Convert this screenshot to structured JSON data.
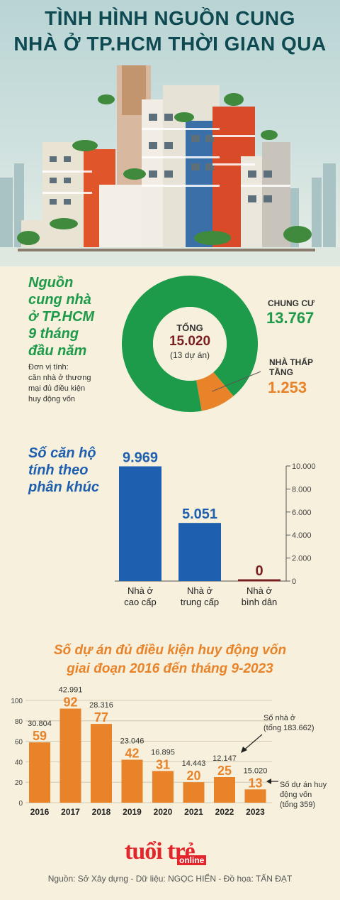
{
  "title": {
    "line1": "TÌNH HÌNH NGUỒN CUNG",
    "line2": "NHÀ Ở TP.HCM THỜI GIAN QUA"
  },
  "colors": {
    "green": "#1d9a4a",
    "orange": "#e8832a",
    "blue": "#1f5fb0",
    "maroon": "#7a1f1f",
    "title": "#0f4a52",
    "brand_red": "#e3262b"
  },
  "supply": {
    "heading": [
      "Nguồn",
      "cung nhà",
      "ở TP.HCM",
      "9 tháng",
      "đầu năm"
    ],
    "unit": [
      "Đơn vị tính:",
      "căn nhà ở thương",
      "mại đủ điều kiện",
      "huy động vốn"
    ],
    "center": {
      "label": "TỔNG",
      "total": "15.020",
      "projects": "(13 dự án)"
    },
    "segments": [
      {
        "label": "CHUNG CƯ",
        "value_text": "13.767",
        "value": 13767,
        "color": "#1d9a4a"
      },
      {
        "label": [
          "NHÀ THẤP",
          "TẦNG"
        ],
        "value_text": "1.253",
        "value": 1253,
        "color": "#e8832a"
      }
    ]
  },
  "segment_heading": [
    "Số căn hộ",
    "tính theo",
    "phân khúc"
  ],
  "projects_title": [
    "Số dự án đủ điều kiện huy động vốn",
    "giai đoạn 2016 đến tháng 9-2023"
  ],
  "notes": {
    "houses": [
      "Số nhà ở",
      "(tổng 183.662)"
    ],
    "projects": [
      "Số dự án huy",
      "động vốn",
      "(tổng 359)"
    ]
  },
  "chart_data": [
    {
      "type": "pie",
      "categories": [
        "CHUNG CƯ",
        "NHÀ THẤP TẦNG"
      ],
      "values": [
        13767,
        1253
      ]
    },
    {
      "type": "bar",
      "categories": [
        "Nhà ở cao cấp",
        "Nhà ở trung cấp",
        "Nhà ở bình dân"
      ],
      "category_lines": [
        [
          "Nhà ở",
          "cao cấp"
        ],
        [
          "Nhà ở",
          "trung cấp"
        ],
        [
          "Nhà ở",
          "bình dân"
        ]
      ],
      "values": [
        9969,
        5051,
        0
      ],
      "value_labels": [
        "9.969",
        "5.051",
        "0"
      ],
      "ylim": [
        0,
        10000
      ],
      "yticks": [
        "0",
        "2.000",
        "4.000",
        "6.000",
        "8.000",
        "10.000"
      ],
      "y_axis_side": "right",
      "colors": [
        "#1f5fb0",
        "#1f5fb0",
        "#7a1f1f"
      ]
    },
    {
      "type": "bar",
      "categories": [
        "2016",
        "2017",
        "2018",
        "2019",
        "2020",
        "2021",
        "2022",
        "2023"
      ],
      "values": [
        59,
        92,
        77,
        42,
        31,
        20,
        25,
        13
      ],
      "secondary_labels": [
        "30.804",
        "42.991",
        "28.316",
        "23.046",
        "16.895",
        "14.443",
        "12.147",
        "15.020"
      ],
      "ylim": [
        0,
        100
      ],
      "yticks": [
        "0",
        "20",
        "40",
        "60",
        "80",
        "100"
      ],
      "grid": true,
      "color": "#e8832a"
    }
  ],
  "footer": {
    "logo_main": "tuổi trẻ",
    "logo_sub": "online",
    "source": "Nguồn: Sở Xây dựng - Dữ liệu: NGỌC HIỂN - Đồ họa: TẤN ĐẠT"
  }
}
